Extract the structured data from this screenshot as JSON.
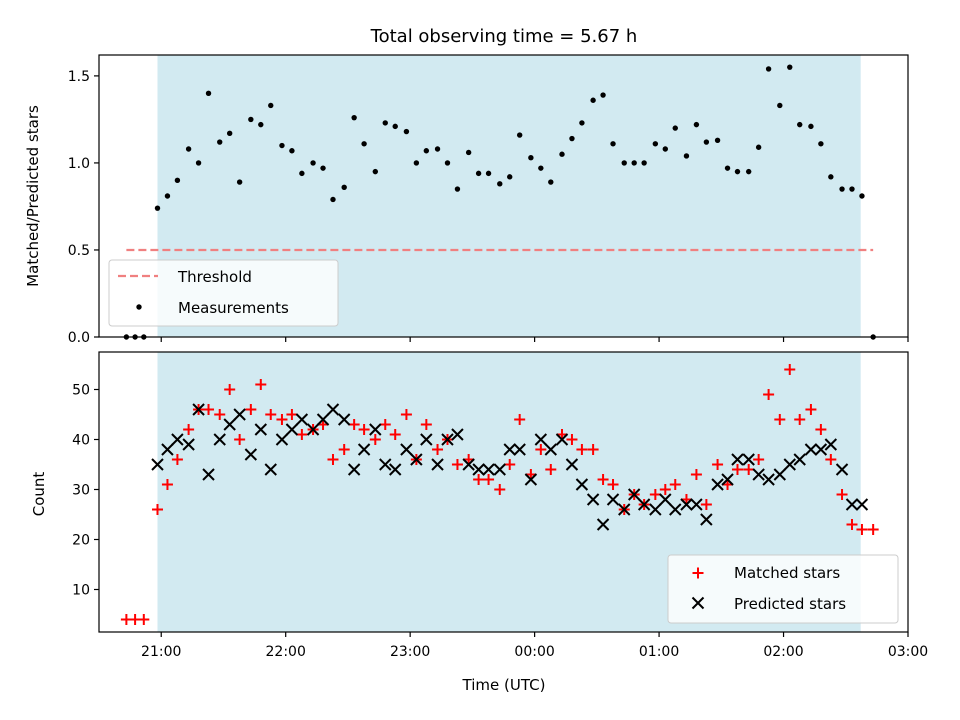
{
  "chart_data": [
    {
      "type": "scatter",
      "title": "Total observing time = 5.67 h",
      "xlabel": "",
      "ylabel": "Matched/Predicted stars",
      "x_unit": "hours (UTC, continuing past midnight)",
      "xlim": [
        20.5,
        27.0
      ],
      "ylim": [
        0.0,
        1.62
      ],
      "yticks": [
        "0.0",
        "0.5",
        "1.0",
        "1.5"
      ],
      "observing_window": [
        20.97,
        26.62
      ],
      "observing_window_color": "#add8e6",
      "legend_position": "lower-left",
      "series": [
        {
          "name": "Threshold",
          "kind": "dashed-line",
          "color": "#f08080",
          "x": [
            20.72,
            26.72
          ],
          "y": [
            0.5,
            0.5
          ]
        },
        {
          "name": "Measurements",
          "kind": "dots",
          "color": "#000000",
          "x": [
            20.72,
            20.79,
            20.86,
            20.97,
            21.05,
            21.13,
            21.22,
            21.3,
            21.38,
            21.47,
            21.55,
            21.63,
            21.72,
            21.8,
            21.88,
            21.97,
            22.05,
            22.13,
            22.22,
            22.3,
            22.38,
            22.47,
            22.55,
            22.63,
            22.72,
            22.8,
            22.88,
            22.97,
            23.05,
            23.13,
            23.22,
            23.3,
            23.38,
            23.47,
            23.55,
            23.63,
            23.72,
            23.8,
            23.88,
            23.97,
            24.05,
            24.13,
            24.22,
            24.3,
            24.38,
            24.47,
            24.55,
            24.63,
            24.72,
            24.8,
            24.88,
            24.97,
            25.05,
            25.13,
            25.22,
            25.3,
            25.38,
            25.47,
            25.55,
            25.63,
            25.72,
            25.8,
            25.88,
            25.97,
            26.05,
            26.13,
            26.22,
            26.3,
            26.38,
            26.47,
            26.55,
            26.63,
            26.72
          ],
          "y": [
            0.0,
            0.0,
            0.0,
            0.74,
            0.81,
            0.9,
            1.08,
            1.0,
            1.4,
            1.12,
            1.17,
            0.89,
            1.25,
            1.22,
            1.33,
            1.1,
            1.07,
            0.94,
            1.0,
            0.97,
            0.79,
            0.86,
            1.26,
            1.11,
            0.95,
            1.23,
            1.21,
            1.18,
            1.0,
            1.07,
            1.08,
            1.0,
            0.85,
            1.06,
            0.94,
            0.94,
            0.88,
            0.92,
            1.16,
            1.03,
            0.97,
            0.89,
            1.05,
            1.14,
            1.23,
            1.36,
            1.39,
            1.11,
            1.0,
            1.0,
            1.0,
            1.11,
            1.08,
            1.2,
            1.04,
            1.22,
            1.12,
            1.13,
            0.97,
            0.95,
            0.95,
            1.09,
            1.54,
            1.33,
            1.55,
            1.22,
            1.21,
            1.11,
            0.92,
            0.85,
            0.85,
            0.81,
            0.0
          ]
        }
      ]
    },
    {
      "type": "scatter",
      "title": "",
      "xlabel": "Time (UTC)",
      "ylabel": "Count",
      "x_unit": "hours (UTC, continuing past midnight)",
      "xlim": [
        20.5,
        27.0
      ],
      "ylim": [
        1.5,
        57.5
      ],
      "yticks": [
        "10",
        "20",
        "30",
        "40",
        "50"
      ],
      "xticks": [
        {
          "value": 21,
          "label": "21:00"
        },
        {
          "value": 22,
          "label": "22:00"
        },
        {
          "value": 23,
          "label": "23:00"
        },
        {
          "value": 24,
          "label": "00:00"
        },
        {
          "value": 25,
          "label": "01:00"
        },
        {
          "value": 26,
          "label": "02:00"
        },
        {
          "value": 27,
          "label": "03:00"
        }
      ],
      "observing_window": [
        20.97,
        26.62
      ],
      "observing_window_color": "#add8e6",
      "legend_position": "lower-right",
      "series": [
        {
          "name": "Matched stars",
          "kind": "plus",
          "color": "#ff0000",
          "x": [
            20.72,
            20.79,
            20.86,
            20.97,
            21.05,
            21.13,
            21.22,
            21.3,
            21.38,
            21.47,
            21.55,
            21.63,
            21.72,
            21.8,
            21.88,
            21.97,
            22.05,
            22.13,
            22.22,
            22.3,
            22.38,
            22.47,
            22.55,
            22.63,
            22.72,
            22.8,
            22.88,
            22.97,
            23.05,
            23.13,
            23.22,
            23.3,
            23.38,
            23.47,
            23.55,
            23.63,
            23.72,
            23.8,
            23.88,
            23.97,
            24.05,
            24.13,
            24.22,
            24.3,
            24.38,
            24.47,
            24.55,
            24.63,
            24.72,
            24.8,
            24.88,
            24.97,
            25.05,
            25.13,
            25.22,
            25.3,
            25.38,
            25.47,
            25.55,
            25.63,
            25.72,
            25.8,
            25.88,
            25.97,
            26.05,
            26.13,
            26.22,
            26.3,
            26.38,
            26.47,
            26.55,
            26.63,
            26.72
          ],
          "y": [
            4,
            4,
            4,
            26,
            31,
            36,
            42,
            46,
            46,
            45,
            50,
            40,
            46,
            51,
            45,
            44,
            45,
            41,
            42,
            43,
            36,
            38,
            43,
            42,
            40,
            43,
            41,
            45,
            36,
            43,
            38,
            40,
            35,
            36,
            32,
            32,
            30,
            35,
            44,
            33,
            38,
            34,
            41,
            40,
            38,
            38,
            32,
            31,
            26,
            29,
            27,
            29,
            30,
            31,
            28,
            33,
            27,
            35,
            31,
            34,
            34,
            36,
            49,
            44,
            54,
            44,
            46,
            42,
            36,
            29,
            23,
            22,
            22
          ]
        },
        {
          "name": "Predicted stars",
          "kind": "x",
          "color": "#000000",
          "x": [
            20.97,
            21.05,
            21.13,
            21.22,
            21.3,
            21.38,
            21.47,
            21.55,
            21.63,
            21.72,
            21.8,
            21.88,
            21.97,
            22.05,
            22.13,
            22.22,
            22.3,
            22.38,
            22.47,
            22.55,
            22.63,
            22.72,
            22.8,
            22.88,
            22.97,
            23.05,
            23.13,
            23.22,
            23.3,
            23.38,
            23.47,
            23.55,
            23.63,
            23.72,
            23.8,
            23.88,
            23.97,
            24.05,
            24.13,
            24.22,
            24.3,
            24.38,
            24.47,
            24.55,
            24.63,
            24.72,
            24.8,
            24.88,
            24.97,
            25.05,
            25.13,
            25.22,
            25.3,
            25.38,
            25.47,
            25.55,
            25.63,
            25.72,
            25.8,
            25.88,
            25.97,
            26.05,
            26.13,
            26.22,
            26.3,
            26.38,
            26.47,
            26.55,
            26.63
          ],
          "y": [
            35,
            38,
            40,
            39,
            46,
            33,
            40,
            43,
            45,
            37,
            42,
            34,
            40,
            42,
            44,
            42,
            44,
            46,
            44,
            34,
            38,
            42,
            35,
            34,
            38,
            36,
            40,
            35,
            40,
            41,
            35,
            34,
            34,
            34,
            38,
            38,
            32,
            40,
            38,
            40,
            35,
            31,
            28,
            23,
            28,
            26,
            29,
            27,
            26,
            28,
            26,
            27,
            27,
            24,
            31,
            32,
            36,
            36,
            33,
            32,
            33,
            35,
            36,
            38,
            38,
            39,
            34,
            27,
            27
          ]
        }
      ]
    }
  ]
}
